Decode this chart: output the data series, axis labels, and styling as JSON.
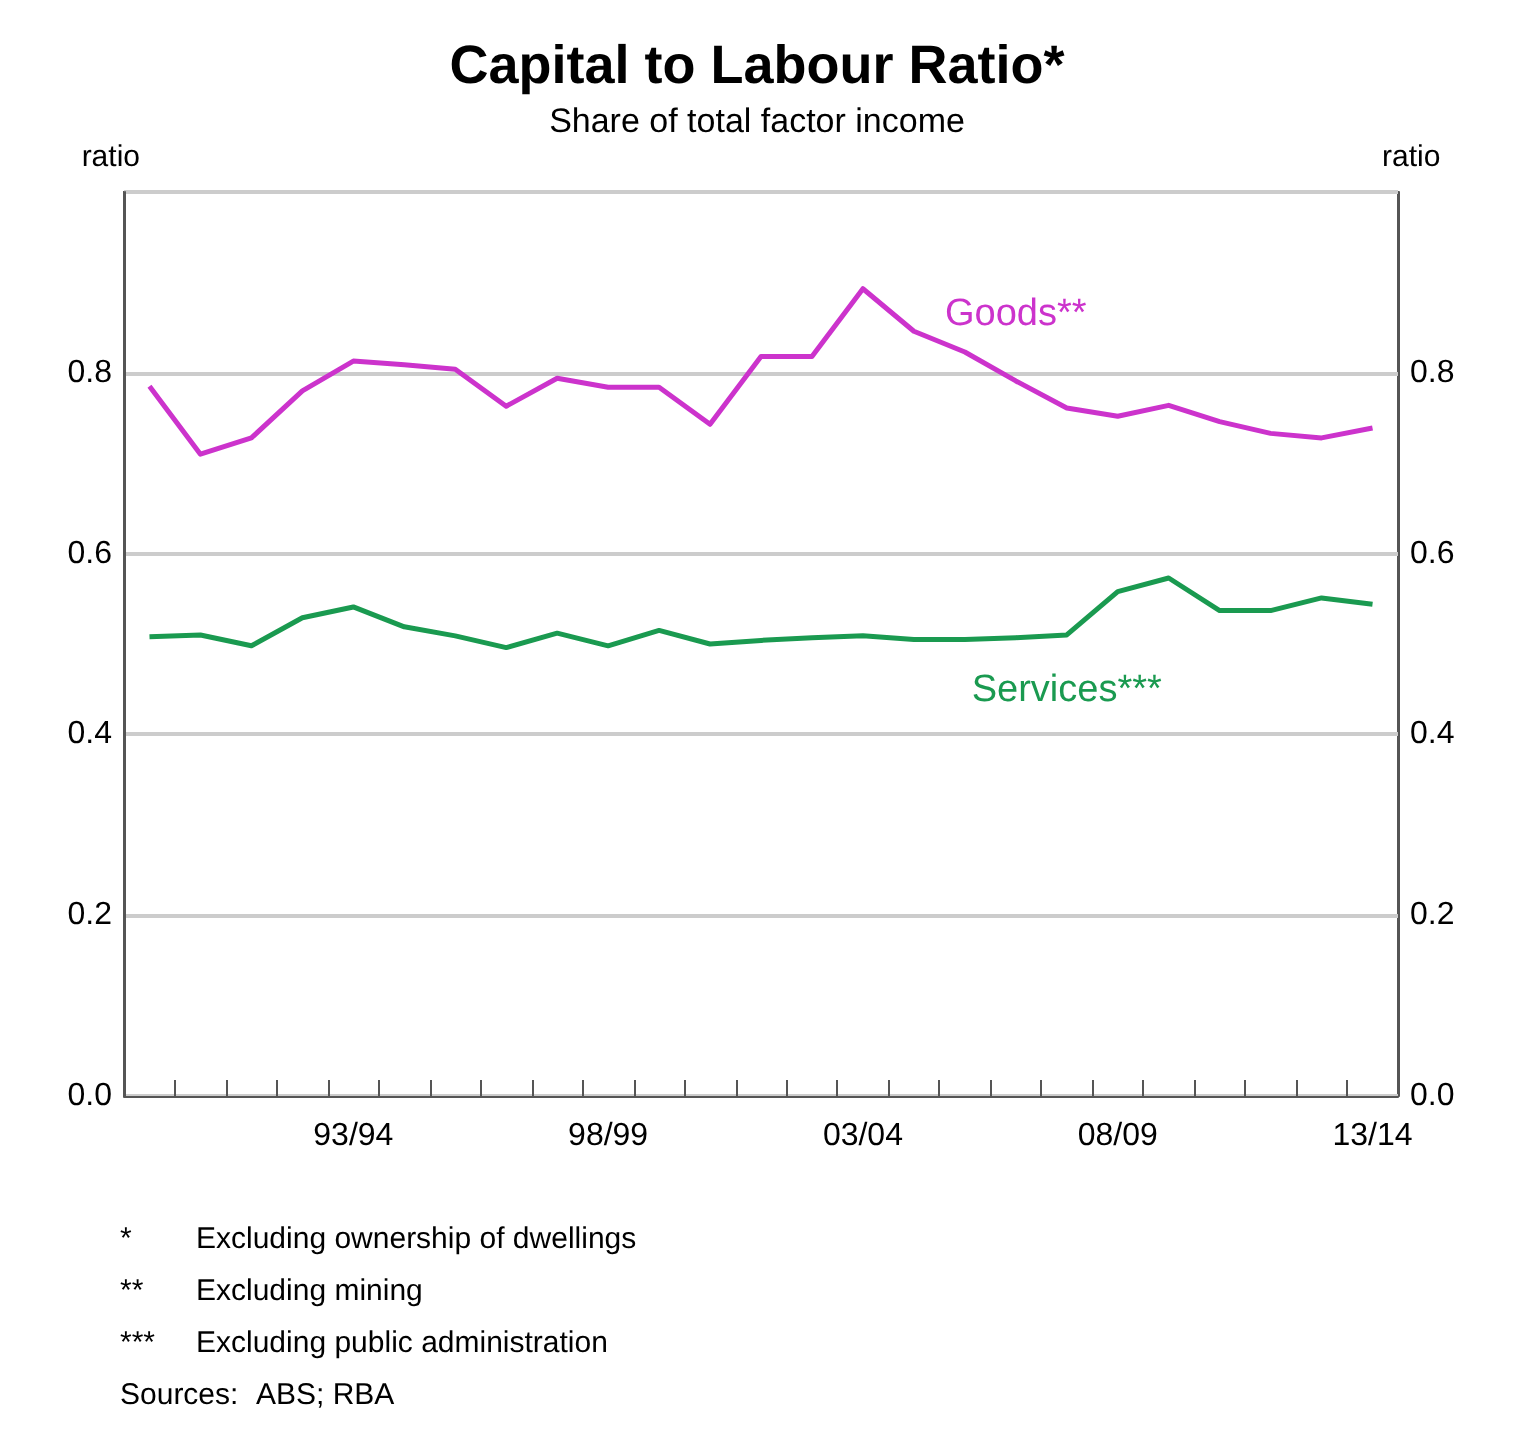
{
  "chart_data": {
    "type": "line",
    "title": "Capital to Labour Ratio*",
    "subtitle": "Share of total factor income",
    "ylabel": "ratio",
    "y2label": "ratio",
    "categories": [
      null,
      null,
      null,
      null,
      "93/94",
      null,
      null,
      null,
      null,
      "98/99",
      null,
      null,
      null,
      null,
      "03/04",
      null,
      null,
      null,
      null,
      "08/09",
      null,
      null,
      null,
      null,
      "13/14"
    ],
    "series": [
      {
        "name": "Goods**",
        "color": "#cc33cc",
        "values": [
          0.785,
          0.71,
          0.728,
          0.78,
          0.813,
          0.809,
          0.804,
          0.763,
          0.794,
          0.784,
          0.784,
          0.743,
          0.818,
          0.818,
          0.893,
          0.846,
          0.823,
          0.791,
          0.761,
          0.752,
          0.764,
          0.746,
          0.733,
          0.728,
          0.739
        ]
      },
      {
        "name": "Services***",
        "color": "#1a9a50",
        "values": [
          0.508,
          0.51,
          0.498,
          0.529,
          0.541,
          0.519,
          0.509,
          0.496,
          0.512,
          0.498,
          0.515,
          0.5,
          0.504,
          0.507,
          0.509,
          0.505,
          0.505,
          0.507,
          0.51,
          0.558,
          0.573,
          0.537,
          0.537,
          0.551,
          0.544
        ]
      }
    ],
    "ylim": [
      0,
      1
    ],
    "yticks": [
      {
        "value": 0,
        "label": "0.0"
      },
      0.2,
      0.4,
      0.6,
      0.8,
      {
        "value": 1,
        "label": null
      }
    ],
    "y2lim": [
      0,
      1
    ],
    "y2ticks": [
      {
        "value": 0,
        "label": "0.0"
      },
      0.2,
      0.4,
      0.6,
      0.8,
      {
        "value": 1,
        "label": null
      }
    ],
    "grid": "y",
    "legend": false,
    "marker": "none",
    "line_style": "solid",
    "annotations": [
      "*\tExcluding ownership of dwellings",
      "**\tExcluding mining",
      "***\tExcluding public administration",
      "Sources:\tABS; RBA"
    ]
  }
}
